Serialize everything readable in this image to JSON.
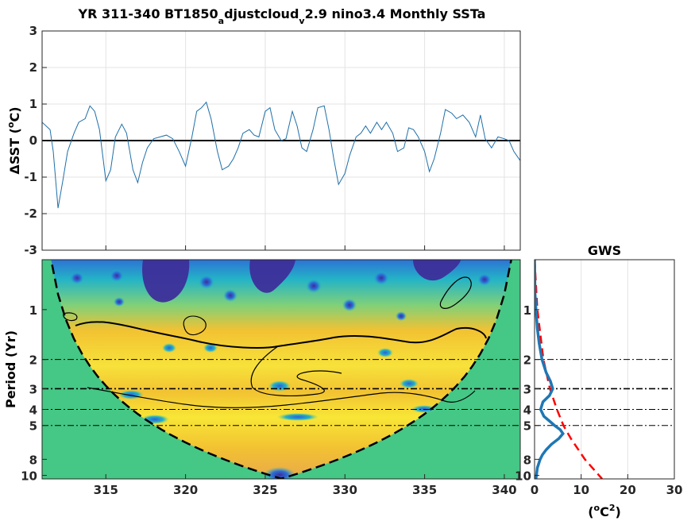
{
  "title": {
    "main": "YR 311-340 BT1850",
    "sub1": "a",
    "mid": "djustcloud",
    "sub2": "v",
    "tail": "2.9 nino3.4 Monthly SSTa"
  },
  "colors": {
    "series": "#1f6fa8",
    "zero_line": "#000000",
    "power_low": "#3d2e9a",
    "power_mid": "#24b3c7",
    "power_high": "#f2c232",
    "coi_fill": "#45c785",
    "gws": "#1f77b4",
    "gws_red_noise": "#ff0000"
  },
  "chart_data": [
    {
      "type": "line",
      "name": "ssta_timeseries",
      "ylabel_prefix": "ΔSST (",
      "ylabel_sup": "o",
      "ylabel_suffix": "C)",
      "xlim": [
        311,
        341
      ],
      "ylim": [
        -3,
        3
      ],
      "yticks": [
        -3,
        -2,
        -1,
        0,
        1,
        2,
        3
      ],
      "grid": true,
      "x": [
        311.0,
        311.5,
        311.7,
        312.0,
        312.3,
        312.6,
        313.0,
        313.3,
        313.7,
        314.0,
        314.3,
        314.6,
        315.0,
        315.3,
        315.6,
        316.0,
        316.3,
        316.7,
        317.0,
        317.3,
        317.6,
        318.0,
        318.4,
        318.8,
        319.2,
        319.6,
        320.0,
        320.4,
        320.7,
        321.0,
        321.3,
        321.6,
        322.0,
        322.3,
        322.7,
        323.0,
        323.3,
        323.6,
        324.0,
        324.3,
        324.6,
        325.0,
        325.3,
        325.6,
        326.0,
        326.3,
        326.7,
        327.0,
        327.3,
        327.6,
        328.0,
        328.3,
        328.7,
        329.0,
        329.3,
        329.6,
        330.0,
        330.3,
        330.7,
        331.0,
        331.3,
        331.6,
        332.0,
        332.3,
        332.6,
        333.0,
        333.3,
        333.7,
        334.0,
        334.3,
        334.6,
        335.0,
        335.3,
        335.6,
        336.0,
        336.3,
        336.7,
        337.0,
        337.4,
        337.8,
        338.2,
        338.5,
        338.8,
        339.2,
        339.6,
        340.0,
        340.3,
        340.6,
        341.0
      ],
      "y": [
        0.5,
        0.3,
        -0.3,
        -1.85,
        -1.1,
        -0.3,
        0.2,
        0.5,
        0.6,
        0.95,
        0.8,
        0.3,
        -1.1,
        -0.8,
        0.1,
        0.45,
        0.2,
        -0.8,
        -1.15,
        -0.6,
        -0.2,
        0.05,
        0.1,
        0.15,
        0.05,
        -0.3,
        -0.7,
        0.1,
        0.8,
        0.9,
        1.05,
        0.6,
        -0.3,
        -0.8,
        -0.7,
        -0.5,
        -0.2,
        0.2,
        0.3,
        0.15,
        0.1,
        0.8,
        0.9,
        0.3,
        0.0,
        0.05,
        0.8,
        0.4,
        -0.2,
        -0.3,
        0.3,
        0.9,
        0.95,
        0.3,
        -0.5,
        -1.2,
        -0.9,
        -0.4,
        0.1,
        0.2,
        0.4,
        0.2,
        0.5,
        0.3,
        0.5,
        0.2,
        -0.3,
        -0.2,
        0.35,
        0.3,
        0.1,
        -0.3,
        -0.85,
        -0.5,
        0.2,
        0.85,
        0.75,
        0.6,
        0.7,
        0.5,
        0.1,
        0.7,
        0.05,
        -0.2,
        0.1,
        0.05,
        0.0,
        -0.3,
        -0.55
      ]
    },
    {
      "type": "heatmap",
      "name": "wavelet_power_spectrum",
      "ylabel": "Period (Yr)",
      "xlim": [
        311,
        341
      ],
      "xticks": [
        315,
        320,
        325,
        330,
        335,
        340
      ],
      "ylim": [
        0.5,
        10.5
      ],
      "yscale": "log",
      "yticks": [
        1,
        2,
        3,
        4,
        5,
        8,
        10
      ],
      "grid": true,
      "cone_of_influence": true
    },
    {
      "type": "line",
      "name": "global_wavelet_spectrum",
      "title": "GWS",
      "xlabel_prefix": "(",
      "xlabel_base": "o",
      "xlabel_mid": "C",
      "xlabel_sup": "2",
      "xlabel_suffix": ")",
      "xlim": [
        0,
        30
      ],
      "xticks": [
        0,
        10,
        20,
        30
      ],
      "yscale": "log",
      "yticks": [
        1,
        2,
        3,
        4,
        5,
        8,
        10
      ],
      "reference_periods": [
        2,
        3,
        4,
        5
      ],
      "series": [
        {
          "period": [
            0.5,
            0.8,
            1.0,
            1.3,
            1.6,
            2.0,
            2.4,
            2.7,
            3.0,
            3.3,
            3.6,
            4.0,
            4.4,
            4.7,
            5.0,
            5.3,
            5.6,
            6.0,
            6.5,
            7.0,
            7.5,
            8.0,
            9.0,
            10.5
          ],
          "power": [
            0.0,
            0.1,
            0.3,
            0.6,
            1.0,
            1.6,
            2.5,
            3.4,
            3.9,
            3.2,
            1.8,
            1.3,
            2.0,
            3.2,
            4.3,
            5.5,
            6.1,
            5.2,
            3.6,
            2.5,
            1.7,
            1.2,
            0.6,
            0.3
          ]
        },
        {
          "period": [
            0.5,
            1.0,
            2.0,
            3.0,
            4.0,
            5.0,
            6.0,
            8.0,
            10.5
          ],
          "power": [
            0.0,
            0.6,
            1.9,
            3.3,
            4.8,
            6.2,
            7.8,
            10.8,
            14.5
          ]
        }
      ]
    }
  ]
}
